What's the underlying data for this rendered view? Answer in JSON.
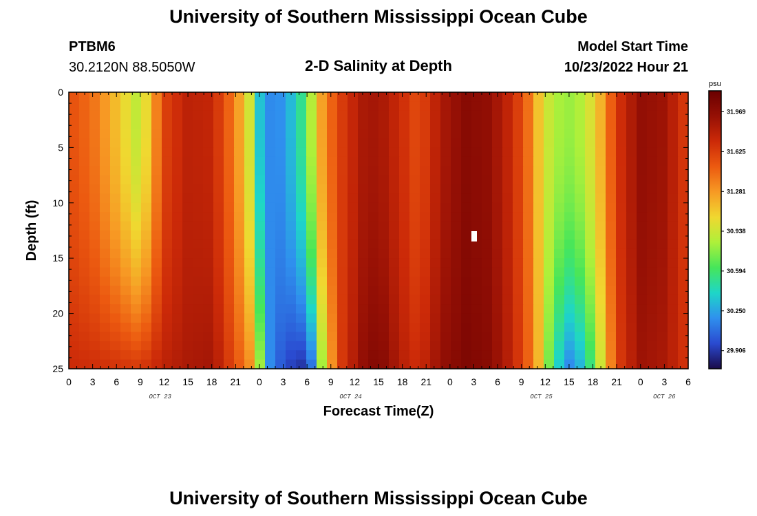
{
  "header": {
    "title_top": "University of Southern Mississippi Ocean Cube",
    "title_bottom": "University of Southern Mississippi Ocean Cube",
    "station_id": "PTBM6",
    "station_coords": "30.2120N  88.5050W",
    "plot_title": "2-D Salinity at Depth",
    "model_label": "Model Start Time",
    "model_time": "10/23/2022 Hour 21"
  },
  "chart_data": {
    "type": "heatmap",
    "title": "2-D Salinity at Depth",
    "xlabel": "Forecast Time(Z)",
    "ylabel": "Depth (ft)",
    "x_hours_range": [
      0,
      78
    ],
    "x_tick_hours": [
      0,
      3,
      6,
      9,
      12,
      15,
      18,
      21,
      24,
      27,
      30,
      33,
      36,
      39,
      42,
      45,
      48,
      51,
      54,
      57,
      60,
      63,
      66,
      69,
      72,
      75,
      78
    ],
    "x_tick_labels": [
      "0",
      "3",
      "6",
      "9",
      "12",
      "15",
      "18",
      "21",
      "0",
      "3",
      "6",
      "9",
      "12",
      "15",
      "18",
      "21",
      "0",
      "3",
      "6",
      "9",
      "12",
      "15",
      "18",
      "21",
      "0",
      "3",
      "6"
    ],
    "date_labels": [
      {
        "text": "OCT 23",
        "hour": 11.5
      },
      {
        "text": "OCT 24",
        "hour": 35.5
      },
      {
        "text": "OCT 25",
        "hour": 59.5
      },
      {
        "text": "OCT 26",
        "hour": 75.0
      }
    ],
    "y_range": [
      0,
      25
    ],
    "y_ticks": [
      0,
      5,
      10,
      15,
      20,
      25
    ],
    "colorbar": {
      "unit": "psu",
      "min": 29.75,
      "max": 32.15,
      "labels": [
        "31.969",
        "31.625",
        "31.281",
        "30.938",
        "30.594",
        "30.250",
        "29.906"
      ]
    },
    "nx": 60,
    "ny": 30,
    "column_profiles": [
      {
        "hour": 0,
        "surface": 31.55,
        "bottom": 31.72
      },
      {
        "hour": 3,
        "surface": 31.42,
        "bottom": 31.7
      },
      {
        "hour": 6,
        "surface": 31.15,
        "bottom": 31.68
      },
      {
        "hour": 9,
        "surface": 30.85,
        "bottom": 31.65
      },
      {
        "hour": 12,
        "surface": 31.6,
        "bottom": 31.78
      },
      {
        "hour": 15,
        "surface": 31.78,
        "bottom": 31.85
      },
      {
        "hour": 18,
        "surface": 31.75,
        "bottom": 31.88
      },
      {
        "hour": 21,
        "surface": 31.35,
        "bottom": 31.55
      },
      {
        "hour": 23,
        "surface": 30.9,
        "bottom": 31.3
      },
      {
        "hour": 24,
        "surface": 30.35,
        "bottom": 30.85
      },
      {
        "hour": 25.5,
        "surface": 30.15,
        "bottom": 30.1
      },
      {
        "hour": 27,
        "surface": 30.2,
        "bottom": 30.0
      },
      {
        "hour": 29,
        "surface": 30.45,
        "bottom": 29.85
      },
      {
        "hour": 30.5,
        "surface": 30.85,
        "bottom": 30.05
      },
      {
        "hour": 32,
        "surface": 31.3,
        "bottom": 30.9
      },
      {
        "hour": 34,
        "surface": 31.6,
        "bottom": 31.6
      },
      {
        "hour": 37,
        "surface": 31.85,
        "bottom": 31.95
      },
      {
        "hour": 39,
        "surface": 31.88,
        "bottom": 32.05
      },
      {
        "hour": 42,
        "surface": 31.7,
        "bottom": 31.8
      },
      {
        "hour": 44,
        "surface": 31.55,
        "bottom": 31.7
      },
      {
        "hour": 47,
        "surface": 31.85,
        "bottom": 31.95
      },
      {
        "hour": 50,
        "surface": 32.0,
        "bottom": 32.05
      },
      {
        "hour": 53,
        "surface": 31.95,
        "bottom": 32.0
      },
      {
        "hour": 56,
        "surface": 31.7,
        "bottom": 31.75
      },
      {
        "hour": 58,
        "surface": 31.4,
        "bottom": 31.45
      },
      {
        "hour": 59.5,
        "surface": 31.05,
        "bottom": 31.1
      },
      {
        "hour": 61,
        "surface": 30.85,
        "bottom": 30.5
      },
      {
        "hour": 63,
        "surface": 30.8,
        "bottom": 30.15
      },
      {
        "hour": 65,
        "surface": 30.88,
        "bottom": 30.35
      },
      {
        "hour": 67,
        "surface": 31.2,
        "bottom": 30.95
      },
      {
        "hour": 69,
        "surface": 31.65,
        "bottom": 31.6
      },
      {
        "hour": 72,
        "surface": 31.95,
        "bottom": 31.9
      },
      {
        "hour": 75,
        "surface": 31.9,
        "bottom": 31.85
      },
      {
        "hour": 78,
        "surface": 31.6,
        "bottom": 31.65
      }
    ],
    "missing_cell": {
      "hour": 51,
      "depth": 13
    },
    "colors": [
      "#1a0a4a",
      "#2a4ad0",
      "#2f90ee",
      "#1ed6c8",
      "#46e65a",
      "#aef03a",
      "#f0d830",
      "#f79a24",
      "#ec5a10",
      "#cc2a08",
      "#961005",
      "#6a0000"
    ]
  }
}
